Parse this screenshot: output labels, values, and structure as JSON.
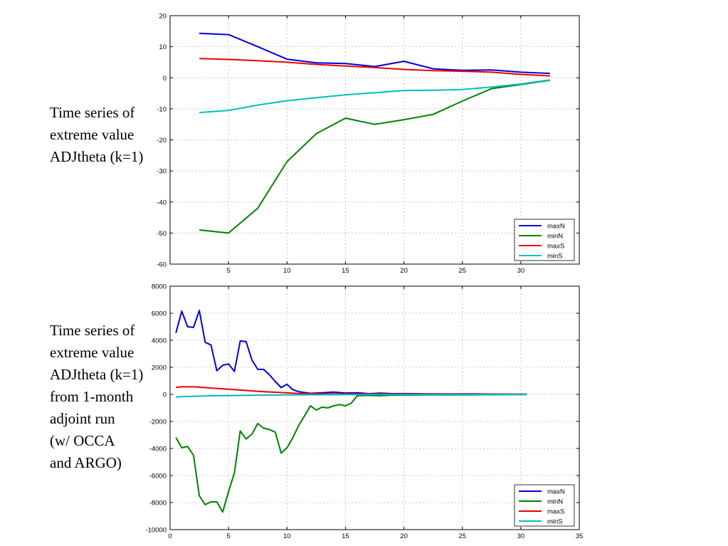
{
  "captions": {
    "top": [
      "Time series of",
      "extreme value",
      "ADJtheta (k=1)"
    ],
    "bottom": [
      "Time series of",
      "extreme value",
      "ADJtheta (k=1)",
      "from 1-month",
      "adjoint run",
      "(w/ OCCA",
      "and ARGO)"
    ]
  },
  "colors": {
    "maxN": "#0000dd",
    "minN": "#008000",
    "maxS": "#ee0000",
    "minS": "#00bfbf",
    "grid": "#bbbbbb"
  },
  "chart_data": [
    {
      "type": "line",
      "title": "",
      "xlabel": "",
      "ylabel": "",
      "xlim": [
        0,
        35
      ],
      "ylim": [
        -60,
        20
      ],
      "xticks": [
        5,
        10,
        15,
        20,
        25,
        30
      ],
      "yticks": [
        20,
        10,
        0,
        -10,
        -20,
        -30,
        -40,
        -50,
        -60
      ],
      "grid": true,
      "legend": "bottom-right",
      "series": [
        {
          "name": "maxN",
          "x": [
            2.5,
            5,
            7.5,
            10,
            12.5,
            15,
            17.5,
            20,
            22.5,
            25,
            27.5,
            30,
            32.5
          ],
          "values": [
            14.3,
            13.9,
            10,
            6,
            4.8,
            4.6,
            3.6,
            5.3,
            2.9,
            2.4,
            2.5,
            1.8,
            1.4
          ]
        },
        {
          "name": "minN",
          "x": [
            2.5,
            5,
            7.5,
            10,
            12.5,
            15,
            17.5,
            20,
            22.5,
            25,
            27.5,
            30,
            32.5
          ],
          "values": [
            -49,
            -50,
            -42,
            -27,
            -18,
            -13,
            -15,
            -13.5,
            -11.8,
            -7.5,
            -3.5,
            -2.2,
            -0.8
          ]
        },
        {
          "name": "maxS",
          "x": [
            2.5,
            5,
            7.5,
            10,
            12.5,
            15,
            17.5,
            20,
            22.5,
            25,
            27.5,
            30,
            32.5
          ],
          "values": [
            6.2,
            5.9,
            5.5,
            5,
            4.3,
            3.8,
            3.3,
            2.7,
            2.3,
            2.1,
            1.8,
            1.1,
            0.6
          ]
        },
        {
          "name": "minS",
          "x": [
            2.5,
            5,
            7.5,
            10,
            12.5,
            15,
            17.5,
            20,
            22.5,
            25,
            27.5,
            30,
            32.5
          ],
          "values": [
            -11.2,
            -10.5,
            -8.8,
            -7.4,
            -6.4,
            -5.5,
            -4.8,
            -4.1,
            -4,
            -3.8,
            -3,
            -2,
            -0.7
          ]
        }
      ]
    },
    {
      "type": "line",
      "title": "",
      "xlabel": "",
      "ylabel": "",
      "xlim": [
        0,
        35
      ],
      "ylim": [
        -10000,
        8000
      ],
      "xticks": [
        0,
        5,
        10,
        15,
        20,
        25,
        30,
        35
      ],
      "yticks": [
        8000,
        6000,
        4000,
        2000,
        0,
        -2000,
        -4000,
        -6000,
        -8000,
        -10000
      ],
      "grid": true,
      "legend": "bottom-right",
      "series": [
        {
          "name": "maxN",
          "x": [
            0.5,
            1,
            1.5,
            2,
            2.5,
            3,
            3.5,
            4,
            4.5,
            5,
            5.5,
            6,
            6.5,
            7,
            7.5,
            8,
            8.5,
            9,
            9.5,
            10,
            10.5,
            11,
            12,
            13,
            14,
            15,
            16,
            17,
            18,
            19,
            20,
            22,
            24,
            26,
            28,
            30.5
          ],
          "values": [
            4550,
            6150,
            5000,
            4950,
            6200,
            3850,
            3650,
            1750,
            2150,
            2250,
            1700,
            3950,
            3900,
            2550,
            1850,
            1850,
            1450,
            950,
            500,
            750,
            350,
            200,
            80,
            120,
            170,
            100,
            120,
            50,
            90,
            50,
            60,
            40,
            30,
            40,
            20,
            10
          ]
        },
        {
          "name": "minN",
          "x": [
            0.5,
            1,
            1.5,
            2,
            2.5,
            3,
            3.5,
            4,
            4.5,
            5,
            5.5,
            6,
            6.5,
            7,
            7.5,
            8,
            8.5,
            9,
            9.5,
            10,
            10.5,
            11,
            11.5,
            12,
            12.5,
            13,
            13.5,
            14,
            14.5,
            15,
            15.5,
            16,
            17,
            18,
            19,
            20,
            22,
            24,
            26,
            28,
            30.5
          ],
          "values": [
            -3200,
            -3950,
            -3850,
            -4500,
            -7500,
            -8150,
            -7950,
            -7950,
            -8700,
            -7200,
            -5800,
            -2700,
            -3300,
            -2950,
            -2150,
            -2500,
            -2600,
            -2800,
            -4350,
            -3950,
            -3200,
            -2300,
            -1600,
            -850,
            -1150,
            -950,
            -1000,
            -850,
            -750,
            -850,
            -650,
            -100,
            -80,
            -100,
            -60,
            -50,
            -40,
            -40,
            -30,
            -20,
            -10
          ]
        },
        {
          "name": "maxS",
          "x": [
            0.5,
            1,
            2,
            3,
            4,
            5,
            6,
            7,
            8,
            9,
            10,
            11,
            12,
            13,
            14,
            15,
            16,
            17,
            18,
            19,
            20,
            22,
            24,
            26,
            28,
            30.5
          ],
          "values": [
            520,
            560,
            560,
            500,
            440,
            380,
            320,
            260,
            200,
            160,
            110,
            70,
            50,
            40,
            35,
            30,
            30,
            25,
            25,
            20,
            20,
            15,
            15,
            10,
            10,
            5
          ]
        },
        {
          "name": "minS",
          "x": [
            0.5,
            1,
            2,
            3,
            4,
            5,
            6,
            7,
            8,
            9,
            10,
            11,
            12,
            13,
            14,
            15,
            16,
            17,
            18,
            19,
            20,
            22,
            24,
            26,
            28,
            30.5
          ],
          "values": [
            -200,
            -170,
            -140,
            -120,
            -100,
            -90,
            -80,
            -70,
            -60,
            -50,
            -40,
            -35,
            -30,
            -25,
            -25,
            -20,
            -20,
            -15,
            -15,
            -10,
            -10,
            -10,
            -10,
            -5,
            -5,
            0
          ]
        }
      ]
    }
  ]
}
